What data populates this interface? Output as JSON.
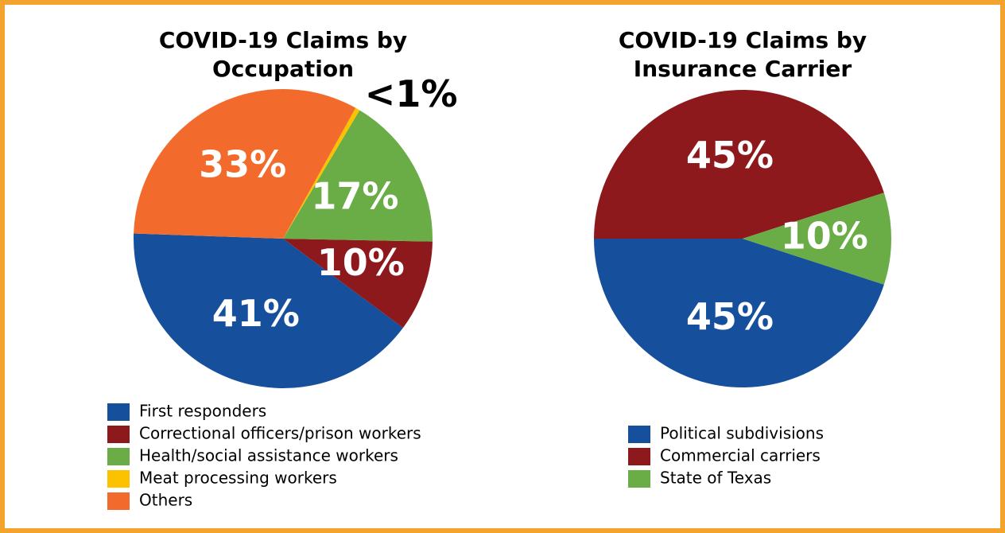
{
  "chart_data": [
    {
      "type": "pie",
      "title": "COVID-19 Claims by Occupation",
      "categories": [
        "First responders",
        "Correctional officers/prison workers",
        "Health/social assistance workers",
        "Meat processing workers",
        "Others"
      ],
      "values": [
        41,
        10,
        17,
        0.5,
        33
      ],
      "value_labels": [
        "41%",
        "10%",
        "17%",
        "<1%",
        "33%"
      ],
      "colors": [
        "#164f9c",
        "#8e191c",
        "#6aac46",
        "#fcc200",
        "#f26b2d"
      ]
    },
    {
      "type": "pie",
      "title": "COVID-19 Claims by Insurance Carrier",
      "categories": [
        "Political subdivisions",
        "Commercial carriers",
        "State of Texas"
      ],
      "values": [
        45,
        45,
        10
      ],
      "value_labels": [
        "45%",
        "45%",
        "10%"
      ],
      "colors": [
        "#164f9c",
        "#8e191c",
        "#6aac46"
      ]
    }
  ]
}
